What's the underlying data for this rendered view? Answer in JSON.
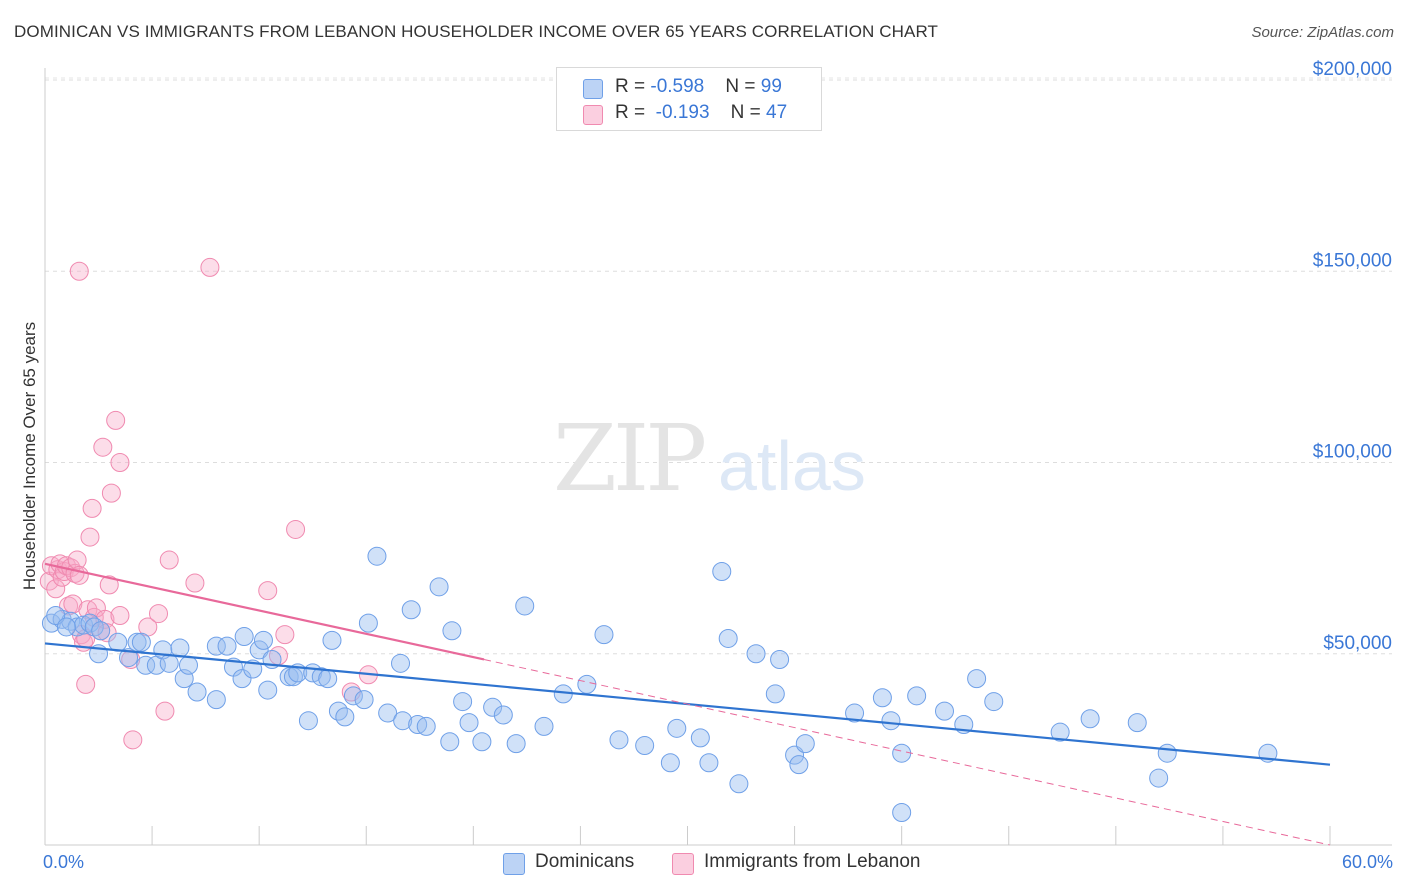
{
  "title": "DOMINICAN VS IMMIGRANTS FROM LEBANON HOUSEHOLDER INCOME OVER 65 YEARS CORRELATION CHART",
  "source": "Source: ZipAtlas.com",
  "watermark": {
    "zip": "ZIP",
    "atlas": "atlas"
  },
  "legend": {
    "rows": [
      {
        "r_label": "R = ",
        "r_value": "-0.598",
        "n_label": "N = ",
        "n_value": "99",
        "color": "#6fa0e8"
      },
      {
        "r_label": "R = ",
        "r_value": "-0.193",
        "n_label": "N = ",
        "n_value": "47",
        "color": "#f08ab0"
      }
    ]
  },
  "bottom_legend": {
    "series1": "Dominicans",
    "series2": "Immigrants from Lebanon"
  },
  "x_axis": {
    "min_label": "0.0%",
    "max_label": "60.0%"
  },
  "chart_data": {
    "type": "scatter",
    "title": "DOMINICAN VS IMMIGRANTS FROM LEBANON HOUSEHOLDER INCOME OVER 65 YEARS CORRELATION CHART",
    "xlabel": "",
    "ylabel": "Householder Income Over 65 years",
    "xlim": [
      0,
      60
    ],
    "ylim": [
      0,
      210000
    ],
    "yticks": [
      50000,
      100000,
      150000,
      200000
    ],
    "ytick_labels": [
      "$50,000",
      "$100,000",
      "$150,000",
      "$200,000"
    ],
    "colors": {
      "Dominicans": "#6fa0e8",
      "Immigrants from Lebanon": "#f08ab0",
      "line1": "#2f74d0",
      "line2": "#e8699a"
    },
    "series": [
      {
        "name": "Dominicans",
        "r": -0.598,
        "n": 99,
        "trend": {
          "x": [
            0,
            60
          ],
          "y": [
            52700,
            21000
          ]
        },
        "points": [
          [
            0.3,
            58000
          ],
          [
            0.8,
            59000
          ],
          [
            1.2,
            58500
          ],
          [
            1.5,
            57000
          ],
          [
            1.8,
            57500
          ],
          [
            2.1,
            58000
          ],
          [
            2.3,
            57000
          ],
          [
            2.6,
            56000
          ],
          [
            2.5,
            50000
          ],
          [
            3.4,
            53000
          ],
          [
            3.9,
            49000
          ],
          [
            4.3,
            53000
          ],
          [
            4.5,
            53000
          ],
          [
            4.7,
            47000
          ],
          [
            5.2,
            47000
          ],
          [
            5.5,
            51000
          ],
          [
            5.8,
            47500
          ],
          [
            6.3,
            51500
          ],
          [
            6.5,
            43500
          ],
          [
            6.7,
            47000
          ],
          [
            7.1,
            40000
          ],
          [
            8.0,
            52000
          ],
          [
            8.0,
            38000
          ],
          [
            8.5,
            52000
          ],
          [
            8.8,
            46500
          ],
          [
            9.2,
            43500
          ],
          [
            9.3,
            54500
          ],
          [
            9.7,
            46000
          ],
          [
            10.0,
            51000
          ],
          [
            10.2,
            53500
          ],
          [
            10.4,
            40500
          ],
          [
            10.6,
            48500
          ],
          [
            11.4,
            44000
          ],
          [
            11.6,
            44000
          ],
          [
            11.8,
            45000
          ],
          [
            12.3,
            32500
          ],
          [
            12.5,
            45000
          ],
          [
            12.9,
            44000
          ],
          [
            13.2,
            43500
          ],
          [
            13.4,
            53500
          ],
          [
            13.7,
            35000
          ],
          [
            14.0,
            33500
          ],
          [
            14.4,
            39000
          ],
          [
            14.9,
            38000
          ],
          [
            15.1,
            58000
          ],
          [
            15.5,
            75500
          ],
          [
            16.0,
            34500
          ],
          [
            16.6,
            47500
          ],
          [
            16.7,
            32500
          ],
          [
            17.1,
            61500
          ],
          [
            17.4,
            31500
          ],
          [
            17.8,
            31000
          ],
          [
            18.4,
            67500
          ],
          [
            18.9,
            27000
          ],
          [
            19.0,
            56000
          ],
          [
            19.5,
            37500
          ],
          [
            19.8,
            32000
          ],
          [
            20.4,
            27000
          ],
          [
            20.9,
            36000
          ],
          [
            21.4,
            34000
          ],
          [
            22.0,
            26500
          ],
          [
            22.4,
            62500
          ],
          [
            23.3,
            31000
          ],
          [
            24.2,
            39500
          ],
          [
            25.3,
            42000
          ],
          [
            26.1,
            55000
          ],
          [
            26.8,
            27500
          ],
          [
            28.0,
            26000
          ],
          [
            29.2,
            21500
          ],
          [
            29.5,
            30500
          ],
          [
            30.6,
            28000
          ],
          [
            31.0,
            21500
          ],
          [
            31.6,
            71500
          ],
          [
            31.9,
            54000
          ],
          [
            32.4,
            16000
          ],
          [
            33.2,
            50000
          ],
          [
            34.1,
            39500
          ],
          [
            34.3,
            48500
          ],
          [
            35.0,
            23500
          ],
          [
            35.2,
            21000
          ],
          [
            35.5,
            26500
          ],
          [
            37.8,
            34500
          ],
          [
            39.1,
            38500
          ],
          [
            39.5,
            32500
          ],
          [
            40.0,
            24000
          ],
          [
            40.0,
            8500
          ],
          [
            40.7,
            39000
          ],
          [
            42.0,
            35000
          ],
          [
            42.9,
            31500
          ],
          [
            43.5,
            43500
          ],
          [
            44.3,
            37500
          ],
          [
            47.4,
            29500
          ],
          [
            48.8,
            33000
          ],
          [
            51.0,
            32000
          ],
          [
            52.0,
            17500
          ],
          [
            52.4,
            24000
          ],
          [
            57.1,
            24000
          ],
          [
            0.5,
            60000
          ],
          [
            1.0,
            57000
          ]
        ]
      },
      {
        "name": "Immigrants from Lebanon",
        "r": -0.193,
        "n": 47,
        "trend": {
          "x": [
            0,
            20.5
          ],
          "y": [
            73500,
            48500
          ]
        },
        "trend_dashed": {
          "x": [
            20.5,
            60
          ],
          "y": [
            48500,
            0
          ]
        },
        "points": [
          [
            0.2,
            69000
          ],
          [
            0.3,
            73000
          ],
          [
            0.5,
            67000
          ],
          [
            0.6,
            72000
          ],
          [
            0.7,
            73500
          ],
          [
            0.8,
            70000
          ],
          [
            0.9,
            71500
          ],
          [
            1.0,
            73000
          ],
          [
            1.1,
            62500
          ],
          [
            1.2,
            72500
          ],
          [
            1.3,
            63000
          ],
          [
            1.4,
            71000
          ],
          [
            1.5,
            74500
          ],
          [
            1.6,
            70500
          ],
          [
            1.7,
            55000
          ],
          [
            1.8,
            53000
          ],
          [
            1.9,
            54000
          ],
          [
            1.9,
            42000
          ],
          [
            2.0,
            61500
          ],
          [
            2.1,
            80500
          ],
          [
            2.2,
            88000
          ],
          [
            2.3,
            59500
          ],
          [
            2.4,
            62000
          ],
          [
            2.6,
            56000
          ],
          [
            2.7,
            104000
          ],
          [
            2.8,
            59000
          ],
          [
            2.9,
            55500
          ],
          [
            3.0,
            68000
          ],
          [
            3.1,
            92000
          ],
          [
            3.3,
            111000
          ],
          [
            3.5,
            100000
          ],
          [
            3.5,
            60000
          ],
          [
            4.0,
            48500
          ],
          [
            4.1,
            27500
          ],
          [
            4.8,
            57000
          ],
          [
            5.3,
            60500
          ],
          [
            5.6,
            35000
          ],
          [
            5.8,
            74500
          ],
          [
            7.0,
            68500
          ],
          [
            1.6,
            150000
          ],
          [
            7.7,
            151000
          ],
          [
            10.4,
            66500
          ],
          [
            10.9,
            49500
          ],
          [
            11.2,
            55000
          ],
          [
            11.7,
            82500
          ],
          [
            14.3,
            40000
          ],
          [
            15.1,
            44500
          ]
        ]
      }
    ]
  }
}
